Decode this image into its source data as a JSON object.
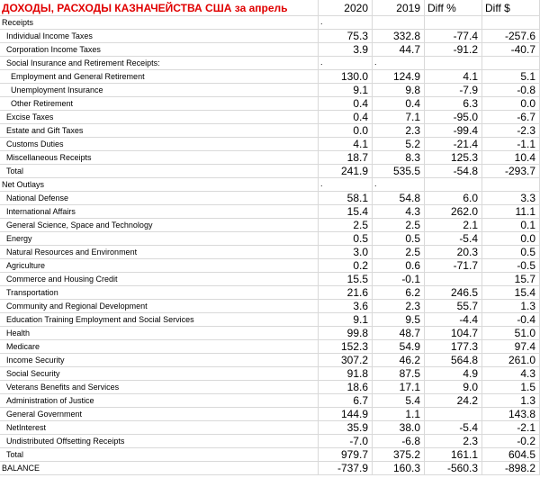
{
  "title": "ДОХОДЫ, РАСХОДЫ КАЗНАЧЕЙСТВА США за апрель",
  "columns": [
    "2020",
    "2019",
    "Diff %",
    "Diff $"
  ],
  "rows": [
    {
      "label": "Receipts",
      "indent": 0,
      "values": [
        ".",
        "",
        "",
        ""
      ]
    },
    {
      "label": "Individual Income Taxes",
      "indent": 1,
      "values": [
        "75.3",
        "332.8",
        "-77.4",
        "-257.6"
      ]
    },
    {
      "label": "Corporation Income Taxes",
      "indent": 1,
      "values": [
        "3.9",
        "44.7",
        "-91.2",
        "-40.7"
      ]
    },
    {
      "label": "Social Insurance and Retirement Receipts:",
      "indent": 1,
      "values": [
        ".",
        ".",
        "",
        ""
      ]
    },
    {
      "label": "Employment and General Retirement",
      "indent": 2,
      "values": [
        "130.0",
        "124.9",
        "4.1",
        "5.1"
      ]
    },
    {
      "label": "Unemployment Insurance",
      "indent": 2,
      "values": [
        "9.1",
        "9.8",
        "-7.9",
        "-0.8"
      ]
    },
    {
      "label": "Other Retirement",
      "indent": 2,
      "values": [
        "0.4",
        "0.4",
        "6.3",
        "0.0"
      ]
    },
    {
      "label": "Excise Taxes",
      "indent": 1,
      "values": [
        "0.4",
        "7.1",
        "-95.0",
        "-6.7"
      ]
    },
    {
      "label": "Estate and Gift Taxes",
      "indent": 1,
      "values": [
        "0.0",
        "2.3",
        "-99.4",
        "-2.3"
      ]
    },
    {
      "label": "Customs Duties",
      "indent": 1,
      "values": [
        "4.1",
        "5.2",
        "-21.4",
        "-1.1"
      ]
    },
    {
      "label": "Miscellaneous Receipts",
      "indent": 1,
      "values": [
        "18.7",
        "8.3",
        "125.3",
        "10.4"
      ]
    },
    {
      "label": "Total",
      "indent": 1,
      "values": [
        "241.9",
        "535.5",
        "-54.8",
        "-293.7"
      ]
    },
    {
      "label": "Net Outlays",
      "indent": 0,
      "values": [
        ".",
        ".",
        "",
        ""
      ]
    },
    {
      "label": "National Defense",
      "indent": 1,
      "values": [
        "58.1",
        "54.8",
        "6.0",
        "3.3"
      ]
    },
    {
      "label": "International Affairs",
      "indent": 1,
      "values": [
        "15.4",
        "4.3",
        "262.0",
        "11.1"
      ]
    },
    {
      "label": "General Science, Space and Technology",
      "indent": 1,
      "values": [
        "2.5",
        "2.5",
        "2.1",
        "0.1"
      ]
    },
    {
      "label": "Energy",
      "indent": 1,
      "values": [
        "0.5",
        "0.5",
        "-5.4",
        "0.0"
      ]
    },
    {
      "label": "Natural Resources and Environment",
      "indent": 1,
      "values": [
        "3.0",
        "2.5",
        "20.3",
        "0.5"
      ]
    },
    {
      "label": "Agriculture",
      "indent": 1,
      "values": [
        "0.2",
        "0.6",
        "-71.7",
        "-0.5"
      ]
    },
    {
      "label": "Commerce and Housing Credit",
      "indent": 1,
      "values": [
        "15.5",
        "-0.1",
        "",
        "15.7"
      ]
    },
    {
      "label": "Transportation",
      "indent": 1,
      "values": [
        "21.6",
        "6.2",
        "246.5",
        "15.4"
      ]
    },
    {
      "label": "Community and Regional Development",
      "indent": 1,
      "values": [
        "3.6",
        "2.3",
        "55.7",
        "1.3"
      ]
    },
    {
      "label": "Education Training Employment and Social Services",
      "indent": 1,
      "values": [
        "9.1",
        "9.5",
        "-4.4",
        "-0.4"
      ]
    },
    {
      "label": "Health",
      "indent": 1,
      "values": [
        "99.8",
        "48.7",
        "104.7",
        "51.0"
      ]
    },
    {
      "label": "Medicare",
      "indent": 1,
      "values": [
        "152.3",
        "54.9",
        "177.3",
        "97.4"
      ]
    },
    {
      "label": "Income Security",
      "indent": 1,
      "values": [
        "307.2",
        "46.2",
        "564.8",
        "261.0"
      ]
    },
    {
      "label": "Social Security",
      "indent": 1,
      "values": [
        "91.8",
        "87.5",
        "4.9",
        "4.3"
      ]
    },
    {
      "label": "Veterans Benefits and Services",
      "indent": 1,
      "values": [
        "18.6",
        "17.1",
        "9.0",
        "1.5"
      ]
    },
    {
      "label": "Administration of Justice",
      "indent": 1,
      "values": [
        "6.7",
        "5.4",
        "24.2",
        "1.3"
      ]
    },
    {
      "label": "General Government",
      "indent": 1,
      "values": [
        "144.9",
        "1.1",
        "",
        "143.8"
      ]
    },
    {
      "label": "NetInterest",
      "indent": 1,
      "values": [
        "35.9",
        "38.0",
        "-5.4",
        "-2.1"
      ]
    },
    {
      "label": "Undistributed Offsetting Receipts",
      "indent": 1,
      "values": [
        "-7.0",
        "-6.8",
        "2.3",
        "-0.2"
      ]
    },
    {
      "label": "Total",
      "indent": 1,
      "values": [
        "979.7",
        "375.2",
        "161.1",
        "604.5"
      ]
    },
    {
      "label": "BALANCE",
      "indent": 0,
      "values": [
        "-737.9",
        "160.3",
        "-560.3",
        "-898.2"
      ]
    }
  ],
  "colors": {
    "title": "#e00000",
    "gridline": "#d9d9d9"
  }
}
